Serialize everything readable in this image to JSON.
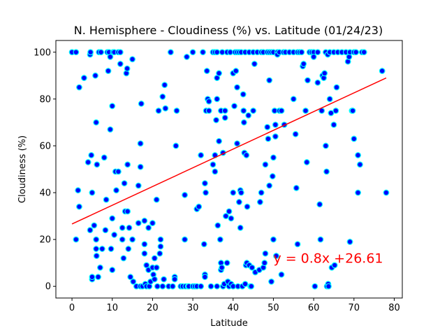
{
  "chart_data": {
    "type": "scatter",
    "title": "N. Hemisphere - Cloudiness (%) vs. Latitude (01/24/23)",
    "xlabel": "Latitude",
    "ylabel": "Cloudiness (%)",
    "xlim": [
      -4,
      82
    ],
    "ylim": [
      -5,
      105
    ],
    "xticks": [
      0,
      10,
      20,
      30,
      40,
      50,
      60,
      70,
      80
    ],
    "yticks": [
      0,
      20,
      40,
      60,
      80,
      100
    ],
    "grid": false,
    "marker_fill": "#0000FF",
    "marker_edge": "#00FFFF",
    "line_color": "#FF0000",
    "regression": {
      "slope": 0.8,
      "intercept": 26.61,
      "x_range": [
        0,
        78
      ]
    },
    "annotation": {
      "text": "y = 0.8x +26.61",
      "x": 50,
      "y": 10,
      "color": "#FF0000"
    },
    "points": [
      [
        0,
        100
      ],
      [
        1,
        100
      ],
      [
        1,
        20
      ],
      [
        1.5,
        41
      ],
      [
        1.8,
        34
      ],
      [
        1.8,
        85
      ],
      [
        3,
        89
      ],
      [
        4,
        53
      ],
      [
        4.5,
        24
      ],
      [
        4.5,
        99
      ],
      [
        4.6,
        100
      ],
      [
        4.8,
        56
      ],
      [
        5,
        40
      ],
      [
        5,
        3
      ],
      [
        5,
        4
      ],
      [
        5.5,
        26
      ],
      [
        5.8,
        90
      ],
      [
        6,
        20
      ],
      [
        6,
        70
      ],
      [
        6,
        16
      ],
      [
        6.1,
        13
      ],
      [
        6.2,
        52
      ],
      [
        6.5,
        4
      ],
      [
        6.7,
        100
      ],
      [
        7,
        8
      ],
      [
        7.2,
        100
      ],
      [
        7.5,
        16
      ],
      [
        8,
        55
      ],
      [
        8.3,
        24
      ],
      [
        8.5,
        37
      ],
      [
        8.8,
        100
      ],
      [
        9,
        92
      ],
      [
        9.2,
        100
      ],
      [
        9.5,
        67
      ],
      [
        9.5,
        98
      ],
      [
        9.7,
        16
      ],
      [
        10,
        7
      ],
      [
        10,
        29
      ],
      [
        10,
        77
      ],
      [
        10.2,
        100
      ],
      [
        10.5,
        100
      ],
      [
        10.5,
        22
      ],
      [
        10.8,
        49
      ],
      [
        11,
        41
      ],
      [
        11.5,
        49
      ],
      [
        11.5,
        100
      ],
      [
        12,
        95
      ],
      [
        12,
        100
      ],
      [
        12.5,
        25
      ],
      [
        12.5,
        20
      ],
      [
        12.8,
        12
      ],
      [
        13,
        44
      ],
      [
        13.2,
        32
      ],
      [
        13.5,
        91
      ],
      [
        13.7,
        93
      ],
      [
        13.8,
        52
      ],
      [
        13.8,
        32
      ],
      [
        14,
        16
      ],
      [
        14.2,
        25
      ],
      [
        14.5,
        4
      ],
      [
        15,
        97
      ],
      [
        15,
        20
      ],
      [
        15.2,
        2
      ],
      [
        16,
        0
      ],
      [
        16.5,
        27
      ],
      [
        16.5,
        43
      ],
      [
        17,
        0
      ],
      [
        17,
        61
      ],
      [
        17,
        51
      ],
      [
        17.2,
        78
      ],
      [
        17.5,
        0
      ],
      [
        18,
        28
      ],
      [
        18,
        18
      ],
      [
        18,
        14
      ],
      [
        18.2,
        1
      ],
      [
        18.5,
        9
      ],
      [
        18.5,
        0
      ],
      [
        19,
        7
      ],
      [
        19,
        25
      ],
      [
        19.2,
        0
      ],
      [
        19.5,
        2
      ],
      [
        20,
        27
      ],
      [
        20,
        8
      ],
      [
        20.2,
        5
      ],
      [
        20.5,
        12
      ],
      [
        20.5,
        3
      ],
      [
        21,
        37
      ],
      [
        21,
        8
      ],
      [
        21.2,
        0
      ],
      [
        21.5,
        75
      ],
      [
        21.8,
        14
      ],
      [
        22,
        20
      ],
      [
        22,
        17
      ],
      [
        22.5,
        81
      ],
      [
        22.5,
        0
      ],
      [
        22.8,
        3
      ],
      [
        23,
        86
      ],
      [
        23.2,
        76
      ],
      [
        24,
        0
      ],
      [
        24.5,
        100
      ],
      [
        25,
        0
      ],
      [
        25.5,
        4
      ],
      [
        25.5,
        3
      ],
      [
        25.8,
        60
      ],
      [
        26,
        75
      ],
      [
        27,
        0
      ],
      [
        27.5,
        0
      ],
      [
        28,
        39
      ],
      [
        28,
        20
      ],
      [
        28.2,
        0
      ],
      [
        28.5,
        98
      ],
      [
        28.8,
        0
      ],
      [
        29,
        0
      ],
      [
        30,
        0
      ],
      [
        30,
        100
      ],
      [
        30.5,
        0
      ],
      [
        31,
        33
      ],
      [
        31,
        0
      ],
      [
        31.5,
        34
      ],
      [
        32,
        56
      ],
      [
        32,
        0
      ],
      [
        32.5,
        100
      ],
      [
        32.8,
        18
      ],
      [
        33,
        44
      ],
      [
        33,
        5
      ],
      [
        33,
        4
      ],
      [
        33.2,
        40
      ],
      [
        33.3,
        75
      ],
      [
        33.5,
        92
      ],
      [
        33.7,
        80
      ],
      [
        34,
        79
      ],
      [
        34,
        75
      ],
      [
        34.5,
        0
      ],
      [
        35,
        100
      ],
      [
        35,
        52
      ],
      [
        35.5,
        49
      ],
      [
        35.5,
        100
      ],
      [
        35.5,
        56
      ],
      [
        35.8,
        71
      ],
      [
        36,
        80
      ],
      [
        36,
        100
      ],
      [
        36,
        89
      ],
      [
        36,
        0
      ],
      [
        36.2,
        26
      ],
      [
        36.5,
        62
      ],
      [
        36.5,
        91
      ],
      [
        36.8,
        20
      ],
      [
        37,
        7
      ],
      [
        37,
        75
      ],
      [
        37,
        10
      ],
      [
        37.2,
        8
      ],
      [
        37.3,
        100
      ],
      [
        37.5,
        57
      ],
      [
        37.5,
        0
      ],
      [
        37.8,
        1
      ],
      [
        38,
        72
      ],
      [
        38,
        75
      ],
      [
        38.2,
        30
      ],
      [
        38.5,
        100
      ],
      [
        38.5,
        10
      ],
      [
        38.7,
        2
      ],
      [
        39,
        0
      ],
      [
        39,
        32
      ],
      [
        39.3,
        100
      ],
      [
        39.5,
        29
      ],
      [
        39.5,
        1
      ],
      [
        40,
        0
      ],
      [
        40,
        40
      ],
      [
        40,
        91
      ],
      [
        40.3,
        77
      ],
      [
        40.5,
        100
      ],
      [
        40.7,
        92
      ],
      [
        41,
        85
      ],
      [
        41,
        61
      ],
      [
        41,
        100
      ],
      [
        41.2,
        0
      ],
      [
        41.5,
        36
      ],
      [
        41.5,
        100
      ],
      [
        41.8,
        41
      ],
      [
        41.8,
        25
      ],
      [
        42,
        100
      ],
      [
        42,
        40
      ],
      [
        42.3,
        0
      ],
      [
        42.5,
        82
      ],
      [
        42.6,
        75
      ],
      [
        42.7,
        70
      ],
      [
        42.8,
        57
      ],
      [
        43,
        100
      ],
      [
        43,
        1
      ],
      [
        43.2,
        9
      ],
      [
        43.3,
        56
      ],
      [
        43.4,
        10
      ],
      [
        43.5,
        34
      ],
      [
        43.8,
        73
      ],
      [
        44,
        100
      ],
      [
        44,
        9
      ],
      [
        44.3,
        0
      ],
      [
        44.5,
        0
      ],
      [
        44.7,
        8
      ],
      [
        45,
        75
      ],
      [
        45,
        100
      ],
      [
        45.3,
        95
      ],
      [
        45.5,
        6
      ],
      [
        46,
        100
      ],
      [
        46.5,
        7
      ],
      [
        46.7,
        36
      ],
      [
        47,
        100
      ],
      [
        47,
        40
      ],
      [
        47.5,
        100
      ],
      [
        47.5,
        8
      ],
      [
        47.8,
        10
      ],
      [
        48,
        52
      ],
      [
        48,
        14
      ],
      [
        48.5,
        100
      ],
      [
        48.5,
        68
      ],
      [
        48.7,
        63
      ],
      [
        49,
        43
      ],
      [
        49,
        100
      ],
      [
        49,
        88
      ],
      [
        49.5,
        100
      ],
      [
        49.5,
        2
      ],
      [
        49.8,
        47
      ],
      [
        50,
        100
      ],
      [
        50,
        20
      ],
      [
        50,
        55
      ],
      [
        50.3,
        75
      ],
      [
        50.5,
        69
      ],
      [
        50.5,
        64
      ],
      [
        50.7,
        13
      ],
      [
        51,
        100
      ],
      [
        51,
        99
      ],
      [
        51.5,
        75
      ],
      [
        51.5,
        100
      ],
      [
        52,
        5
      ],
      [
        52,
        75
      ],
      [
        52.5,
        100
      ],
      [
        52.7,
        69
      ],
      [
        53,
        100
      ],
      [
        54,
        100
      ],
      [
        55,
        100
      ],
      [
        55,
        80
      ],
      [
        55.5,
        65
      ],
      [
        55.7,
        42
      ],
      [
        56,
        100
      ],
      [
        56,
        18
      ],
      [
        56.5,
        100
      ],
      [
        57,
        100
      ],
      [
        57.3,
        94
      ],
      [
        57.5,
        95
      ],
      [
        58,
        75
      ],
      [
        58.3,
        53
      ],
      [
        58.5,
        88
      ],
      [
        59,
        100
      ],
      [
        59,
        100
      ],
      [
        59.5,
        100
      ],
      [
        60,
        100
      ],
      [
        60,
        98
      ],
      [
        60.3,
        0
      ],
      [
        61,
        87
      ],
      [
        61,
        100
      ],
      [
        61.5,
        35
      ],
      [
        61.7,
        20
      ],
      [
        62,
        75
      ],
      [
        62.2,
        90
      ],
      [
        62.5,
        89
      ],
      [
        62.7,
        91
      ],
      [
        63,
        100
      ],
      [
        63,
        60
      ],
      [
        63.2,
        49
      ],
      [
        63.3,
        0
      ],
      [
        63.5,
        99
      ],
      [
        63.6,
        1
      ],
      [
        63.7,
        0
      ],
      [
        64,
        100
      ],
      [
        64,
        80
      ],
      [
        64.3,
        74
      ],
      [
        64.5,
        8
      ],
      [
        65,
        100
      ],
      [
        65,
        69
      ],
      [
        65.2,
        9
      ],
      [
        65.5,
        75
      ],
      [
        65.7,
        85
      ],
      [
        66,
        100
      ],
      [
        67,
        100
      ],
      [
        68,
        100
      ],
      [
        68.5,
        96
      ],
      [
        68.8,
        98
      ],
      [
        69,
        100
      ],
      [
        69,
        19
      ],
      [
        69.5,
        75
      ],
      [
        69.7,
        75
      ],
      [
        70,
        63
      ],
      [
        70,
        100
      ],
      [
        70.5,
        100
      ],
      [
        71,
        40
      ],
      [
        71,
        56
      ],
      [
        71.5,
        52
      ],
      [
        72,
        100
      ],
      [
        72.5,
        100
      ],
      [
        77,
        92
      ],
      [
        78,
        40
      ]
    ]
  }
}
